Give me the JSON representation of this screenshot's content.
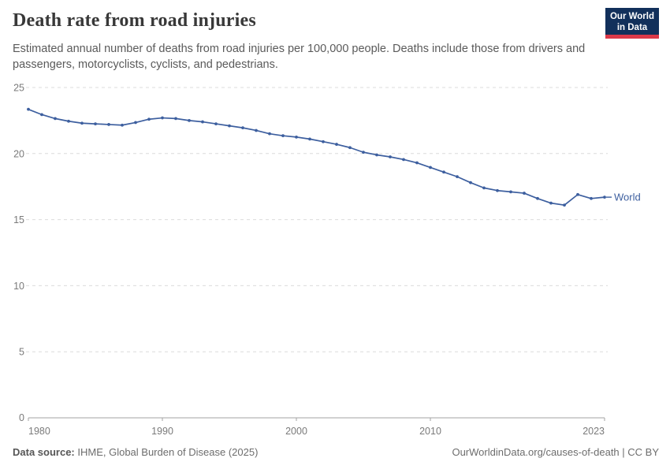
{
  "header": {
    "title": "Death rate from road injuries",
    "subtitle": "Estimated annual number of deaths from road injuries per 100,000 people. Deaths include those from drivers and passengers, motorcyclists, cyclists, and pedestrians.",
    "logo": {
      "line1": "Our World",
      "line2": "in Data"
    }
  },
  "chart_data": {
    "type": "line",
    "title": "Death rate from road injuries",
    "xlabel": "",
    "ylabel": "",
    "xlim": [
      1980,
      2023
    ],
    "ylim": [
      0,
      25
    ],
    "x_ticks": [
      1980,
      1990,
      2000,
      2010,
      2023
    ],
    "y_ticks": [
      0,
      5,
      10,
      15,
      20,
      25
    ],
    "grid": "horizontal-dashed",
    "legend_position": "end-of-line",
    "series": [
      {
        "name": "World",
        "color": "#3d5f9f",
        "x": [
          1980,
          1981,
          1982,
          1983,
          1984,
          1985,
          1986,
          1987,
          1988,
          1989,
          1990,
          1991,
          1992,
          1993,
          1994,
          1995,
          1996,
          1997,
          1998,
          1999,
          2000,
          2001,
          2002,
          2003,
          2004,
          2005,
          2006,
          2007,
          2008,
          2009,
          2010,
          2011,
          2012,
          2013,
          2014,
          2015,
          2016,
          2017,
          2018,
          2019,
          2020,
          2021,
          2022,
          2023
        ],
        "values": [
          23.35,
          22.95,
          22.65,
          22.45,
          22.3,
          22.25,
          22.2,
          22.15,
          22.35,
          22.6,
          22.7,
          22.65,
          22.5,
          22.4,
          22.25,
          22.1,
          21.95,
          21.75,
          21.5,
          21.35,
          21.25,
          21.1,
          20.9,
          20.7,
          20.45,
          20.1,
          19.9,
          19.75,
          19.55,
          19.3,
          18.95,
          18.6,
          18.25,
          17.8,
          17.4,
          17.2,
          17.1,
          17.0,
          16.6,
          16.25,
          16.1,
          16.9,
          16.6,
          16.7
        ]
      }
    ]
  },
  "footer": {
    "source_label": "Data source:",
    "source_text": " IHME, Global Burden of Disease (2025)",
    "credit": "OurWorldinData.org/causes-of-death | CC BY"
  },
  "colors": {
    "line": "#3d5f9f",
    "gridline": "#dcdcdc",
    "axis": "#a3a3a3",
    "axis_label": "#7a7a7a",
    "logo_bg": "#12305b",
    "logo_red": "#dc3949"
  }
}
